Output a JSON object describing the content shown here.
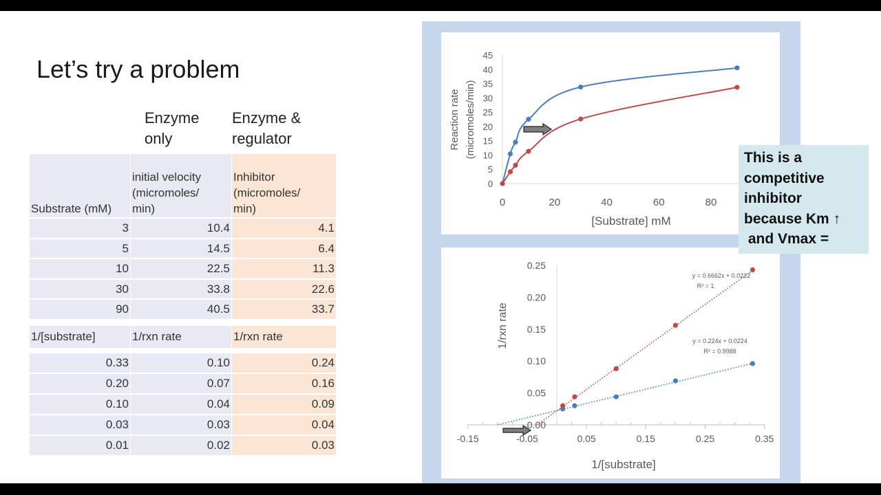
{
  "slide": {
    "title": "Let’s try a problem",
    "col_heads": {
      "enzyme_only_1": "Enzyme",
      "enzyme_only_2": "only",
      "regulator_1": "Enzyme &",
      "regulator_2": "regulator"
    }
  },
  "table1": {
    "headers": [
      "Substrate (mM)",
      "initial velocity (micromoles/ min)",
      "Inhibitor (micromoles/ min)"
    ],
    "header_lines": {
      "c0": [
        "Substrate (mM)"
      ],
      "c1": [
        "initial velocity",
        "(micromoles/",
        "min)"
      ],
      "c2": [
        "Inhibitor",
        "(micromoles/",
        "min)"
      ]
    },
    "rows": [
      [
        "3",
        "10.4",
        "4.1"
      ],
      [
        "5",
        "14.5",
        "6.4"
      ],
      [
        "10",
        "22.5",
        "11.3"
      ],
      [
        "30",
        "33.8",
        "22.6"
      ],
      [
        "90",
        "40.5",
        "33.7"
      ]
    ]
  },
  "table2": {
    "headers": [
      "1/[substrate]",
      "1/rxn rate",
      "1/rxn rate"
    ],
    "rows": [
      [
        "0.33",
        "0.10",
        "0.24"
      ],
      [
        "0.20",
        "0.07",
        "0.16"
      ],
      [
        "0.10",
        "0.04",
        "0.09"
      ],
      [
        "0.03",
        "0.03",
        "0.04"
      ],
      [
        "0.01",
        "0.02",
        "0.03"
      ]
    ]
  },
  "callout": {
    "lines": [
      "This is a",
      "competitive",
      "inhibitor",
      "because Km ↑",
      " and Vmax ="
    ]
  },
  "colors": {
    "enzyme_only": "#4a7ebb",
    "inhibitor": "#be4b48",
    "panel": "#c6d6ec",
    "callout_bg": "#d5e8ee",
    "table_blue": "#e7eaf2",
    "table_orange": "#fbe6d6"
  },
  "chart_data": [
    {
      "type": "line",
      "title": "",
      "xlabel": "[Substrate] mM",
      "ylabel": "Reaction rate (micromoles/min)",
      "xlim": [
        0,
        90
      ],
      "ylim": [
        0,
        45
      ],
      "xticks": [
        "0",
        "20",
        "40",
        "60",
        "80"
      ],
      "yticks": [
        "0",
        "5",
        "10",
        "15",
        "20",
        "25",
        "30",
        "35",
        "40",
        "45"
      ],
      "grid": false,
      "legend": null,
      "x": [
        0,
        3,
        5,
        10,
        30,
        90
      ],
      "series": [
        {
          "name": "Enzyme only",
          "values": [
            0,
            10.4,
            14.5,
            22.5,
            33.8,
            40.5
          ]
        },
        {
          "name": "Enzyme & regulator (Inhibitor)",
          "values": [
            0,
            4.1,
            6.4,
            11.3,
            22.6,
            33.7
          ]
        }
      ],
      "annotations": [
        "right arrow between curves near y=20"
      ]
    },
    {
      "type": "scatter",
      "title": "",
      "xlabel": "1/[substrate]",
      "ylabel": "1/rxn rate",
      "xlim": [
        -0.15,
        0.35
      ],
      "ylim": [
        0,
        0.25
      ],
      "xticks": [
        "-0.15",
        "-0.05",
        "0.05",
        "0.15",
        "0.25",
        "0.35"
      ],
      "yticks": [
        "0.00",
        "0.05",
        "0.10",
        "0.15",
        "0.20",
        "0.25"
      ],
      "grid": false,
      "series": [
        {
          "name": "Enzyme only",
          "x": [
            0.33,
            0.2,
            0.1,
            0.03,
            0.01
          ],
          "values": [
            0.096,
            0.069,
            0.044,
            0.03,
            0.025
          ],
          "trendline": {
            "equation": "y = 0.224x + 0.0224",
            "r2": "R² = 0.9988",
            "slope": 0.224,
            "intercept": 0.0224
          }
        },
        {
          "name": "Inhibitor",
          "x": [
            0.33,
            0.2,
            0.1,
            0.03,
            0.01
          ],
          "values": [
            0.243,
            0.156,
            0.088,
            0.044,
            0.03
          ],
          "trendline": {
            "equation": "y = 0.6662x + 0.0222",
            "r2": "R² = 1",
            "slope": 0.6662,
            "intercept": 0.0222
          }
        }
      ],
      "annotations": [
        "right arrow pointing at x-intercepts near -0.05"
      ]
    }
  ]
}
